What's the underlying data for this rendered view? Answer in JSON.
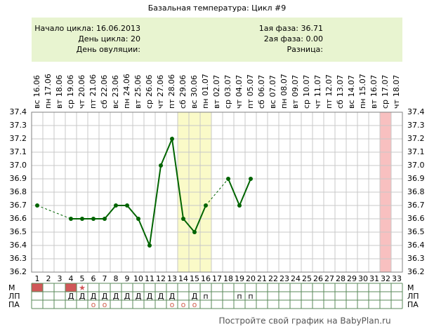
{
  "chart_data": {
    "type": "line",
    "title": "Базальная температура: Цикл #9",
    "info_left": [
      "Начало цикла: 16.06.2013",
      "День цикла: 20",
      "День овуляции:"
    ],
    "info_right": [
      "1ая фаза: 36.71",
      "2ая фаза: 0.00",
      "Разница:"
    ],
    "weekdays": [
      "вс",
      "пн",
      "вт",
      "ср",
      "чт",
      "пт",
      "сб",
      "вс",
      "пн",
      "вт",
      "ср",
      "чт",
      "пт",
      "сб",
      "вс",
      "пн",
      "вт",
      "ср",
      "чт",
      "пт",
      "сб",
      "вс",
      "пн",
      "вт",
      "ср",
      "чт",
      "пт",
      "сб",
      "вс",
      "пн",
      "вт",
      "ср",
      "чт"
    ],
    "dates": [
      "16.06",
      "17.06",
      "18.06",
      "19.06",
      "20.06",
      "21.06",
      "22.06",
      "23.06",
      "24.06",
      "25.06",
      "26.06",
      "27.06",
      "28.06",
      "29.06",
      "30.06",
      "01.07",
      "02.07",
      "03.07",
      "04.07",
      "05.07",
      "06.07",
      "07.07",
      "08.07",
      "09.07",
      "10.07",
      "11.07",
      "12.07",
      "13.07",
      "14.07",
      "15.07",
      "16.07",
      "17.07",
      "18.07"
    ],
    "categories": [
      1,
      2,
      3,
      4,
      5,
      6,
      7,
      8,
      9,
      10,
      11,
      12,
      13,
      14,
      15,
      16,
      17,
      18,
      19,
      20,
      21,
      22,
      23,
      24,
      25,
      26,
      27,
      28,
      29,
      30,
      31,
      32,
      33
    ],
    "values": [
      36.7,
      null,
      null,
      36.6,
      36.6,
      36.6,
      36.6,
      36.7,
      36.7,
      36.6,
      36.4,
      37.0,
      37.2,
      36.6,
      36.5,
      36.7,
      null,
      36.9,
      36.7,
      36.9,
      null,
      null,
      null,
      null,
      null,
      null,
      null,
      null,
      null,
      null,
      null,
      null,
      null
    ],
    "color": "#006400",
    "ylim": [
      36.2,
      37.4
    ],
    "yticks": [
      36.2,
      36.3,
      36.4,
      36.5,
      36.6,
      36.7,
      36.8,
      36.9,
      {
        "value": 37,
        "label": "37.0"
      },
      37.1,
      37.2,
      37.3,
      37.4
    ],
    "grid": true,
    "bands": [
      {
        "from": 14,
        "to": 16,
        "color": "#fafac8"
      },
      {
        "from": 32,
        "to": 32,
        "color": "#f8c0c0"
      }
    ],
    "rows": [
      {
        "label": "М",
        "filled": [
          1,
          4
        ],
        "fill_color": "#d05858",
        "cells": [
          null,
          null,
          null,
          null,
          "★",
          null,
          null,
          null,
          null,
          null,
          null,
          null,
          null,
          null,
          null,
          null,
          null,
          null,
          null,
          null,
          null,
          null,
          null,
          null,
          null,
          null,
          null,
          null,
          null,
          null,
          null,
          null,
          null
        ]
      },
      {
        "label": "ЛП",
        "cells": [
          null,
          null,
          null,
          "Д",
          "Д",
          "Д",
          "Д",
          "Д",
          "Д",
          "Д",
          "Д",
          "Д",
          "Д",
          null,
          "Д",
          "п",
          null,
          null,
          "п",
          "п",
          null,
          null,
          null,
          null,
          null,
          null,
          null,
          null,
          null,
          null,
          null,
          null,
          null
        ]
      },
      {
        "label": "ПА",
        "cells": [
          null,
          null,
          null,
          null,
          null,
          "о",
          "о",
          null,
          null,
          null,
          null,
          null,
          "о",
          "о",
          "о",
          null,
          null,
          null,
          null,
          null,
          null,
          null,
          null,
          null,
          null,
          null,
          null,
          null,
          null,
          null,
          null,
          null,
          null
        ]
      }
    ],
    "footer": "Постройте свой график на BabyPlan.ru"
  }
}
